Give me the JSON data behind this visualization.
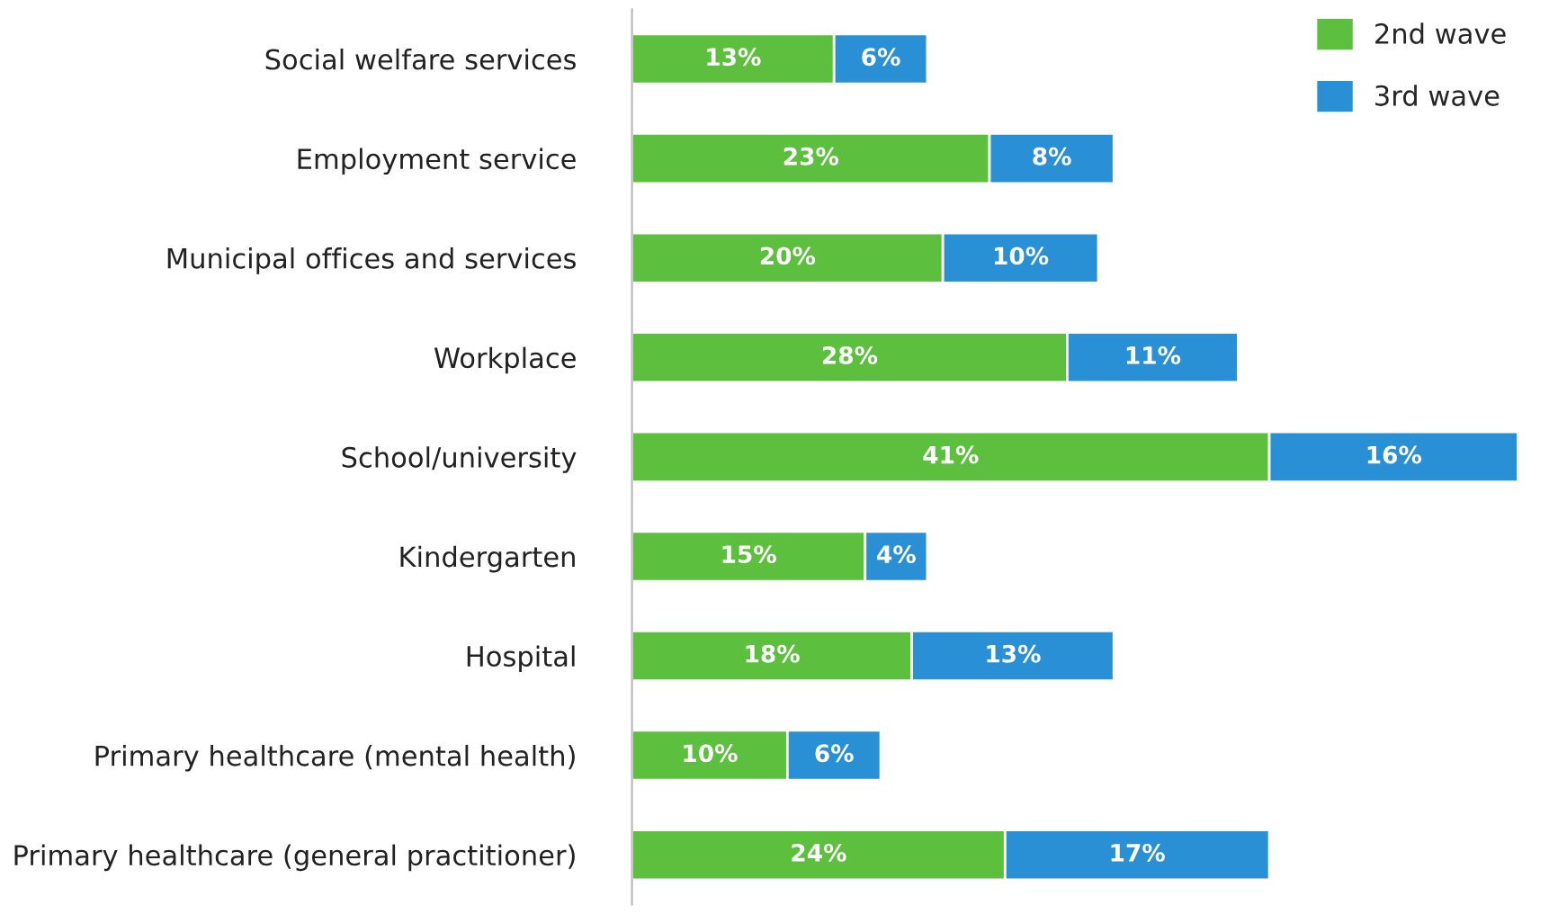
{
  "chart_data": {
    "type": "bar",
    "orientation": "horizontal",
    "stacked": true,
    "categories": [
      "Social welfare services",
      "Employment service",
      "Municipal offices and services",
      "Workplace",
      "School/university",
      "Kindergarten",
      "Hospital",
      "Primary healthcare (mental health)",
      "Primary healthcare (general practitioner)"
    ],
    "series": [
      {
        "name": "2nd wave",
        "color": "#5dbf3e",
        "values": [
          13,
          23,
          20,
          28,
          41,
          15,
          18,
          10,
          24
        ],
        "value_labels": [
          "13%",
          "23%",
          "20%",
          "28%",
          "41%",
          "15%",
          "18%",
          "10%",
          "24%"
        ]
      },
      {
        "name": "3rd wave",
        "color": "#2a90d6",
        "values": [
          6,
          8,
          10,
          11,
          16,
          4,
          13,
          6,
          17
        ],
        "value_labels": [
          "6%",
          "8%",
          "10%",
          "11%",
          "16%",
          "4%",
          "13%",
          "6%",
          "17%"
        ]
      }
    ],
    "tick_labels": "y",
    "legend": "top right",
    "grid": false
  }
}
